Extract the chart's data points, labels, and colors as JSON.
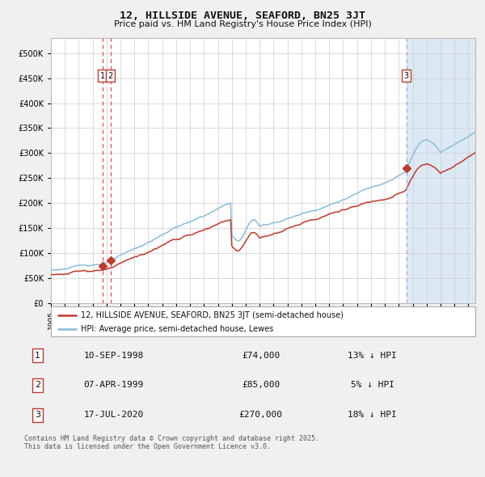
{
  "title": "12, HILLSIDE AVENUE, SEAFORD, BN25 3JT",
  "subtitle": "Price paid vs. HM Land Registry's House Price Index (HPI)",
  "legend_line1": "12, HILLSIDE AVENUE, SEAFORD, BN25 3JT (semi-detached house)",
  "legend_line2": "HPI: Average price, semi-detached house, Lewes",
  "footer": "Contains HM Land Registry data © Crown copyright and database right 2025.\nThis data is licensed under the Open Government Licence v3.0.",
  "transactions": [
    {
      "num": 1,
      "date": "10-SEP-1998",
      "price": 74000,
      "pct": "13%",
      "dir": "↓",
      "year": 1998.71
    },
    {
      "num": 2,
      "date": "07-APR-1999",
      "price": 85000,
      "pct": "5%",
      "dir": "↓",
      "year": 1999.27
    },
    {
      "num": 3,
      "date": "17-JUL-2020",
      "price": 270000,
      "pct": "18%",
      "dir": "↓",
      "year": 2020.54
    }
  ],
  "hpi_color": "#8bbcda",
  "price_color": "#c0392b",
  "highlight_bg": "#dce9f5",
  "ylim": [
    0,
    530000
  ],
  "yticks": [
    0,
    50000,
    100000,
    150000,
    200000,
    250000,
    300000,
    350000,
    400000,
    450000,
    500000
  ],
  "xmin": 1995.0,
  "xmax": 2025.5,
  "background_color": "#f0f0f0",
  "chart_bg": "#ffffff",
  "grid_color": "#cccccc"
}
